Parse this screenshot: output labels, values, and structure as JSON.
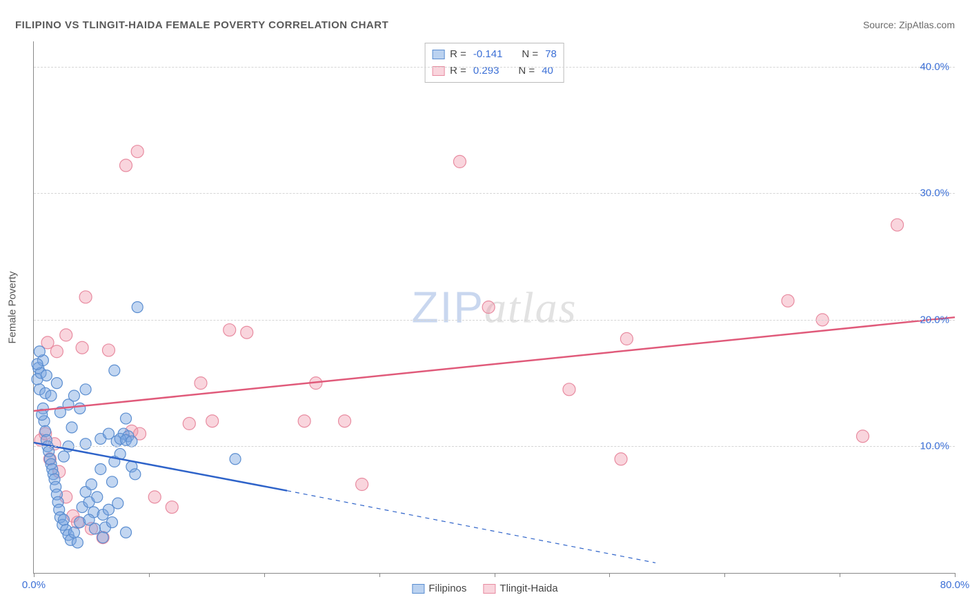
{
  "title": "FILIPINO VS TLINGIT-HAIDA FEMALE POVERTY CORRELATION CHART",
  "source_prefix": "Source: ",
  "source_name": "ZipAtlas.com",
  "watermark": {
    "left": "ZIP",
    "right": "atlas"
  },
  "chart": {
    "type": "scatter",
    "xlim": [
      0,
      80
    ],
    "ylim": [
      0,
      42
    ],
    "x_ticks": [
      0,
      10,
      20,
      30,
      40,
      50,
      60,
      70,
      80
    ],
    "x_tick_labels": {
      "0": "0.0%",
      "80": "80.0%"
    },
    "y_ticks": [
      10,
      20,
      30,
      40
    ],
    "y_tick_labels": {
      "10": "10.0%",
      "20": "20.0%",
      "30": "30.0%",
      "40": "40.0%"
    },
    "y_axis_title": "Female Poverty",
    "grid_color": "#d5d5d5",
    "background_color": "#ffffff",
    "series": {
      "filipinos": {
        "label": "Filipinos",
        "fill": "rgba(120,165,225,0.45)",
        "stroke": "#5a8dd0",
        "marker_radius": 8,
        "trend": {
          "start": [
            0,
            10.3
          ],
          "solid_end": [
            22,
            6.5
          ],
          "dash_end": [
            54,
            0.8
          ],
          "color": "#2e63c9",
          "width": 2.5
        },
        "R": "-0.141",
        "N": "78",
        "points": [
          [
            0.3,
            15.3
          ],
          [
            0.4,
            16.2
          ],
          [
            0.5,
            14.5
          ],
          [
            0.6,
            15.8
          ],
          [
            0.8,
            13.0
          ],
          [
            0.9,
            12.0
          ],
          [
            1.0,
            11.2
          ],
          [
            1.1,
            10.5
          ],
          [
            1.2,
            10.0
          ],
          [
            1.3,
            9.6
          ],
          [
            1.4,
            9.0
          ],
          [
            1.5,
            8.6
          ],
          [
            1.6,
            8.2
          ],
          [
            1.7,
            7.8
          ],
          [
            1.8,
            7.4
          ],
          [
            1.9,
            6.8
          ],
          [
            2.0,
            6.2
          ],
          [
            2.1,
            5.6
          ],
          [
            2.2,
            5.0
          ],
          [
            2.3,
            4.4
          ],
          [
            2.5,
            3.8
          ],
          [
            2.6,
            4.2
          ],
          [
            2.8,
            3.4
          ],
          [
            3.0,
            3.0
          ],
          [
            3.2,
            2.6
          ],
          [
            3.5,
            3.2
          ],
          [
            3.8,
            2.4
          ],
          [
            4.0,
            4.0
          ],
          [
            4.2,
            5.2
          ],
          [
            4.5,
            6.4
          ],
          [
            4.8,
            5.6
          ],
          [
            5.0,
            7.0
          ],
          [
            5.2,
            4.8
          ],
          [
            5.5,
            6.0
          ],
          [
            5.8,
            8.2
          ],
          [
            6.0,
            4.6
          ],
          [
            6.2,
            3.6
          ],
          [
            6.5,
            5.0
          ],
          [
            6.8,
            7.2
          ],
          [
            7.0,
            8.8
          ],
          [
            7.2,
            10.4
          ],
          [
            7.5,
            9.4
          ],
          [
            7.8,
            11.0
          ],
          [
            8.0,
            12.2
          ],
          [
            8.2,
            10.8
          ],
          [
            8.5,
            8.4
          ],
          [
            8.8,
            7.8
          ],
          [
            2.3,
            12.7
          ],
          [
            3.0,
            13.3
          ],
          [
            3.5,
            14.0
          ],
          [
            4.0,
            13.0
          ],
          [
            4.5,
            14.5
          ],
          [
            1.0,
            14.2
          ],
          [
            0.8,
            16.8
          ],
          [
            0.5,
            17.5
          ],
          [
            0.3,
            16.5
          ],
          [
            5.8,
            10.6
          ],
          [
            6.5,
            11.0
          ],
          [
            7.0,
            16.0
          ],
          [
            7.5,
            10.6
          ],
          [
            8.0,
            10.5
          ],
          [
            8.5,
            10.4
          ],
          [
            4.5,
            10.2
          ],
          [
            3.0,
            10.0
          ],
          [
            2.0,
            15.0
          ],
          [
            1.5,
            14.0
          ],
          [
            1.1,
            15.6
          ],
          [
            0.7,
            12.5
          ],
          [
            2.6,
            9.2
          ],
          [
            3.3,
            11.5
          ],
          [
            4.8,
            4.2
          ],
          [
            5.3,
            3.5
          ],
          [
            6.0,
            2.8
          ],
          [
            6.8,
            4.0
          ],
          [
            7.3,
            5.5
          ],
          [
            9.0,
            21.0
          ],
          [
            17.5,
            9.0
          ],
          [
            8.0,
            3.2
          ]
        ]
      },
      "tlingit": {
        "label": "Tlingit-Haida",
        "fill": "rgba(240,150,170,0.40)",
        "stroke": "#e88ba0",
        "marker_radius": 9,
        "trend": {
          "start": [
            0,
            12.8
          ],
          "solid_end": [
            80,
            20.2
          ],
          "color": "#e05a7a",
          "width": 2.5
        },
        "R": "0.293",
        "N": "40",
        "points": [
          [
            1.2,
            18.2
          ],
          [
            2.0,
            17.5
          ],
          [
            2.8,
            18.8
          ],
          [
            4.2,
            17.8
          ],
          [
            6.5,
            17.6
          ],
          [
            4.5,
            21.8
          ],
          [
            8.0,
            32.2
          ],
          [
            9.0,
            33.3
          ],
          [
            8.5,
            11.2
          ],
          [
            9.2,
            11.0
          ],
          [
            10.5,
            6.0
          ],
          [
            12.0,
            5.2
          ],
          [
            13.5,
            11.8
          ],
          [
            14.5,
            15.0
          ],
          [
            15.5,
            12.0
          ],
          [
            17.0,
            19.2
          ],
          [
            18.5,
            19.0
          ],
          [
            23.5,
            12.0
          ],
          [
            24.5,
            15.0
          ],
          [
            27.0,
            12.0
          ],
          [
            28.5,
            7.0
          ],
          [
            37.0,
            32.5
          ],
          [
            39.5,
            21.0
          ],
          [
            46.5,
            14.5
          ],
          [
            51.0,
            9.0
          ],
          [
            51.5,
            18.5
          ],
          [
            65.5,
            21.5
          ],
          [
            68.5,
            20.0
          ],
          [
            72.0,
            10.8
          ],
          [
            75.0,
            27.5
          ],
          [
            0.6,
            10.5
          ],
          [
            1.0,
            11.0
          ],
          [
            1.4,
            9.0
          ],
          [
            1.8,
            10.2
          ],
          [
            2.2,
            8.0
          ],
          [
            2.8,
            6.0
          ],
          [
            3.4,
            4.5
          ],
          [
            3.8,
            4.0
          ],
          [
            5.0,
            3.5
          ],
          [
            6.0,
            2.8
          ]
        ]
      }
    },
    "legend_top": [
      {
        "swatch": "blue",
        "R_label": "R =",
        "N_label": "N ="
      },
      {
        "swatch": "pink",
        "R_label": "R =",
        "N_label": "N ="
      }
    ]
  }
}
